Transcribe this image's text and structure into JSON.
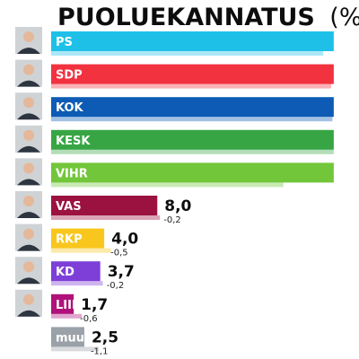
{
  "title": "PUOLUEKANNATUS",
  "title_suffix": "(%)",
  "chart_data": {
    "type": "bar",
    "orientation": "horizontal",
    "title": "PUOLUEKANNATUS (%)",
    "xlim": [
      0,
      23
    ],
    "categories": [
      "PS",
      "SDP",
      "KOK",
      "KESK",
      "VIHR",
      "VAS",
      "RKP",
      "KD",
      "LIIK",
      "muut"
    ],
    "series": [
      {
        "values": [
          21.3,
          21.3,
          21.3,
          21.3,
          21.3,
          8.0,
          4.0,
          3.7,
          1.7,
          2.5
        ],
        "value_labels": [
          "",
          "",
          "",
          "",
          "",
          "8,0",
          "4,0",
          "3,7",
          "1,7",
          "2,5"
        ]
      },
      {
        "values": [
          20.5,
          21.1,
          21.2,
          21.3,
          17.5,
          8.2,
          4.5,
          3.9,
          2.3,
          3.6
        ],
        "value_labels": [
          "",
          "",
          "",
          "",
          "",
          "-0,2",
          "-0,5",
          "-0,2",
          "-0,6",
          "-1,1"
        ]
      }
    ],
    "colors": [
      "#1ec0e8",
      "#f2323f",
      "#0d5bb5",
      "#38a544",
      "#72c63a",
      "#9b1241",
      "#f8c61d",
      "#7d3fd8",
      "#b0127a",
      "#9aa1a8"
    ],
    "photos": [
      true,
      true,
      true,
      true,
      true,
      true,
      true,
      true,
      true,
      false
    ]
  }
}
